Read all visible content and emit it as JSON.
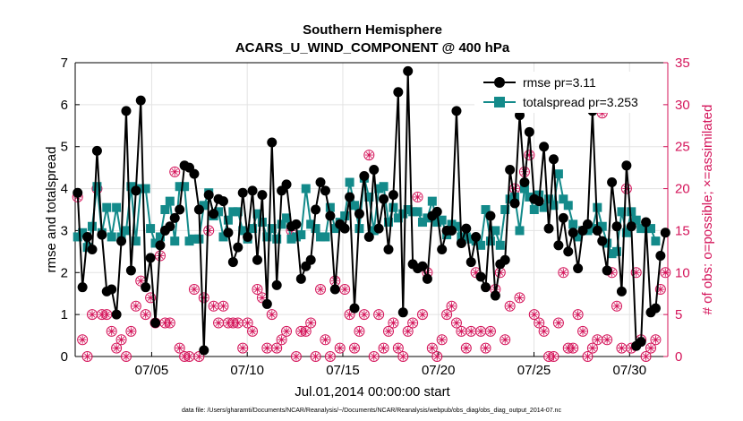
{
  "chart_data": {
    "type": "line",
    "title": "Southern Hemisphere",
    "subtitle": "ACARS_U_WIND_COMPONENT @ 400 hPa",
    "xlabel": "Jul.01,2014 00:00:00 start",
    "ylabel_left": "rmse and totalspread",
    "ylabel_right": "# of obs: o=possible; ×=assimilated",
    "footnote": "data file: /Users/gharamti/Documents/NCAR/Reanalysis/~/Documents/NCAR/Reanalysis/webpub/obs_diag/obs_diag_output_2014-07.nc",
    "xlim": [
      1.0,
      32.0
    ],
    "ylim_left": [
      0,
      7
    ],
    "ylim_right": [
      0,
      35
    ],
    "x_ticks": [
      5,
      10,
      15,
      20,
      25,
      30
    ],
    "x_tick_labels": [
      "07/05",
      "07/10",
      "07/15",
      "07/20",
      "07/25",
      "07/30"
    ],
    "y_ticks_left": [
      0,
      1,
      2,
      3,
      4,
      5,
      6,
      7
    ],
    "y_ticks_right": [
      0,
      5,
      10,
      15,
      20,
      25,
      30,
      35
    ],
    "grid": true,
    "legend_position": "top-right",
    "colors": {
      "rmse": "#000000",
      "spread": "#138a8a",
      "obs": "#d4145a"
    },
    "series": [
      {
        "name": "rmse pr=3.11",
        "axis": "left",
        "values": [
          3.9,
          1.65,
          2.85,
          2.55,
          4.9,
          2.9,
          1.55,
          1.6,
          1.0,
          2.75,
          5.85,
          2.05,
          3.95,
          6.1,
          1.65,
          2.35,
          0.8,
          2.65,
          3.0,
          3.1,
          3.3,
          3.5,
          4.55,
          4.5,
          4.35,
          3.5,
          0.15,
          3.85,
          3.4,
          3.75,
          3.7,
          2.95,
          2.25,
          2.6,
          3.9,
          2.85,
          3.95,
          2.3,
          3.85,
          1.25,
          5.1,
          1.7,
          3.95,
          4.1,
          3.1,
          3.15,
          1.85,
          2.15,
          2.3,
          3.5,
          4.15,
          3.95,
          3.35,
          1.6,
          3.15,
          3.05,
          3.8,
          1.15,
          3.4,
          4.3,
          2.85,
          4.45,
          3.05,
          3.75,
          2.55,
          3.85,
          6.3,
          1.05,
          6.8,
          2.2,
          2.1,
          2.15,
          1.85,
          3.35,
          3.45,
          2.55,
          3.0,
          3.0,
          5.85,
          2.7,
          3.05,
          2.25,
          2.85,
          1.9,
          1.65,
          3.35,
          1.45,
          2.2,
          2.3,
          4.45,
          3.65,
          5.75,
          4.15,
          5.35,
          3.75,
          3.7,
          5.0,
          3.05,
          4.7,
          2.65,
          3.3,
          2.5,
          2.95,
          2.1,
          3.0,
          3.15,
          5.85,
          3.0,
          2.75,
          2.05,
          4.15,
          3.1,
          1.55,
          4.55,
          3.1,
          0.25,
          0.35,
          3.2,
          1.05,
          1.15,
          2.4,
          2.95
        ]
      },
      {
        "name": "totalspread pr=3.253",
        "axis": "left",
        "values": [
          2.85,
          2.95,
          2.6,
          3.1,
          4.05,
          2.95,
          3.55,
          2.85,
          3.55,
          2.85,
          3.0,
          4.05,
          2.75,
          4.0,
          4.0,
          3.05,
          2.7,
          2.85,
          3.5,
          3.7,
          2.75,
          4.05,
          4.05,
          2.75,
          2.8,
          2.8,
          3.6,
          3.9,
          3.35,
          3.45,
          2.85,
          3.25,
          3.45,
          3.45,
          3.0,
          2.8,
          3.05,
          3.4,
          3.2,
          2.85,
          3.05,
          2.8,
          3.15,
          3.3,
          2.8,
          2.85,
          2.9,
          4.0,
          3.15,
          3.05,
          2.85,
          2.85,
          3.55,
          3.05,
          3.2,
          3.35,
          4.15,
          3.6,
          3.05,
          4.25,
          3.8,
          3.0,
          4.0,
          4.05,
          3.2,
          3.55,
          3.3,
          3.4,
          3.5,
          3.45,
          3.45,
          3.2,
          3.3,
          3.7,
          3.2,
          3.25,
          2.9,
          3.15,
          3.1,
          2.85,
          2.85,
          2.8,
          2.75,
          2.65,
          3.5,
          2.75,
          3.0,
          2.65,
          3.5,
          3.75,
          3.8,
          3.0,
          4.0,
          3.8,
          3.5,
          3.85,
          3.55,
          3.75,
          3.6,
          4.35,
          3.75,
          3.6,
          3.15,
          2.85,
          3.0,
          3.0,
          3.05,
          3.55,
          3.1,
          2.7,
          2.45,
          2.5,
          3.45,
          2.95,
          3.45,
          3.25,
          3.05,
          3.05,
          3.05,
          2.75
        ]
      },
      {
        "name": "possible",
        "axis": "right",
        "values": [
          19,
          2,
          0,
          5,
          20,
          5,
          5,
          3,
          1,
          2,
          0,
          3,
          6,
          9,
          5,
          7,
          4,
          12,
          4,
          4,
          22,
          1,
          0,
          0,
          8,
          0,
          7,
          15,
          6,
          4,
          6,
          4,
          4,
          4,
          1,
          4,
          3,
          8,
          7,
          1,
          5,
          1,
          2,
          3,
          15,
          0,
          3,
          3,
          4,
          0,
          8,
          2,
          0,
          9,
          1,
          8,
          5,
          1,
          3,
          5,
          24,
          0,
          5,
          1,
          3,
          4,
          1,
          0,
          3,
          4,
          19,
          5,
          10,
          1,
          0,
          2,
          5,
          6,
          4,
          3,
          1,
          3,
          10,
          3,
          1,
          3,
          8,
          10,
          2,
          6,
          20,
          7,
          22,
          24,
          5,
          4,
          3,
          0,
          0,
          4,
          10,
          1,
          1,
          5,
          3,
          0,
          1,
          2,
          29,
          2,
          10,
          6,
          1,
          20,
          1,
          10,
          2,
          0,
          1,
          2,
          8,
          10
        ]
      },
      {
        "name": "assimilated",
        "axis": "right",
        "values": [
          19,
          2,
          0,
          5,
          20,
          5,
          5,
          3,
          1,
          2,
          0,
          3,
          6,
          9,
          5,
          7,
          4,
          12,
          4,
          4,
          22,
          1,
          0,
          0,
          8,
          0,
          7,
          15,
          6,
          4,
          6,
          4,
          4,
          4,
          1,
          4,
          3,
          8,
          7,
          1,
          5,
          1,
          2,
          3,
          15,
          0,
          3,
          3,
          4,
          0,
          8,
          2,
          0,
          9,
          1,
          8,
          5,
          1,
          3,
          5,
          24,
          0,
          5,
          1,
          3,
          4,
          1,
          0,
          3,
          4,
          19,
          5,
          10,
          1,
          0,
          2,
          5,
          6,
          4,
          3,
          1,
          3,
          10,
          3,
          1,
          3,
          8,
          10,
          2,
          6,
          20,
          7,
          22,
          24,
          5,
          4,
          3,
          0,
          0,
          4,
          10,
          1,
          1,
          5,
          3,
          0,
          1,
          2,
          29,
          2,
          10,
          6,
          1,
          20,
          1,
          10,
          2,
          0,
          1,
          2,
          8,
          10
        ]
      }
    ]
  }
}
